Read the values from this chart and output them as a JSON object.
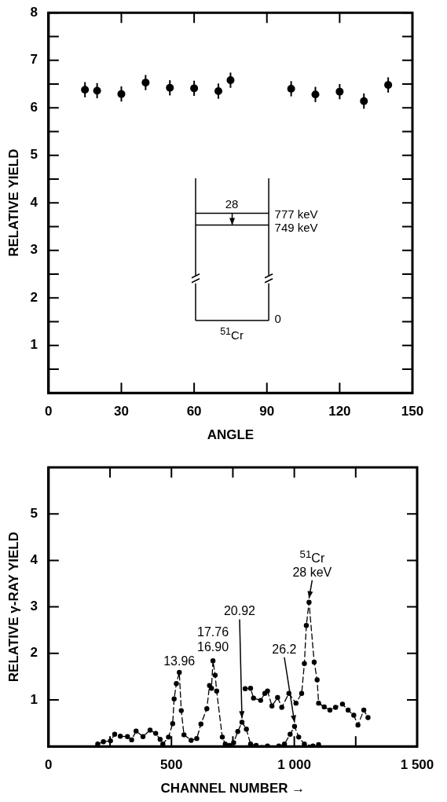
{
  "chart_data": [
    {
      "type": "scatter",
      "xlabel": "ANGLE",
      "ylabel": "RELATIVE YIELD",
      "x": [
        15,
        20,
        30,
        40,
        50,
        60,
        70,
        75,
        100,
        110,
        120,
        130,
        140
      ],
      "values": [
        6.38,
        6.36,
        6.29,
        6.53,
        6.42,
        6.41,
        6.35,
        6.58,
        6.4,
        6.28,
        6.34,
        6.14,
        6.48
      ],
      "errors": [
        0.16,
        0.16,
        0.16,
        0.16,
        0.16,
        0.16,
        0.16,
        0.16,
        0.16,
        0.16,
        0.16,
        0.16,
        0.16
      ],
      "color": "#000000",
      "marker": "circle",
      "xlim": [
        0,
        150
      ],
      "xticks": [
        0,
        30,
        60,
        90,
        120,
        150
      ],
      "ylim": [
        0,
        8
      ],
      "yticks": [
        {
          "value": 0,
          "label": null
        },
        {
          "value": 0.5,
          "label": null
        },
        1,
        {
          "value": 1.5,
          "label": null
        },
        2,
        {
          "value": 2.5,
          "label": null
        },
        3,
        {
          "value": 3.5,
          "label": null
        },
        4,
        {
          "value": 4.5,
          "label": null
        },
        5,
        {
          "value": 5.5,
          "label": null
        },
        6,
        {
          "value": 6.5,
          "label": null
        },
        7,
        {
          "value": 7.5,
          "label": null
        },
        8
      ],
      "annotations": [
        "28",
        "777 keV",
        "749 keV",
        "0",
        "$^{51}$Cr"
      ]
    },
    {
      "type": "line",
      "xlabel": "CHANNEL NUMBER →",
      "ylabel": "RELATIVE γ-RAY YIELD",
      "series": [
        {
          "color": "#000000",
          "x": [
            200,
            223,
            252,
            269,
            292,
            321,
            338,
            356,
            384,
            413,
            436,
            454,
            465,
            488,
            505,
            511,
            520,
            532,
            540,
            551,
            580,
            603,
            620,
            644,
            655,
            663,
            669,
            678,
            684,
            707,
            719,
            736,
            753,
            770,
            787,
            805,
            822,
            845,
            891,
            937,
            960,
            983,
            1001,
            1018,
            1041,
            1076,
            1099
          ],
          "values": [
            0.05,
            0.1,
            0.12,
            0.26,
            0.22,
            0.21,
            0.14,
            0.33,
            0.21,
            0.35,
            0.28,
            0.15,
            0.05,
            0.2,
            0.49,
            1.02,
            1.35,
            1.59,
            0.77,
            0.25,
            0.13,
            0.17,
            0.48,
            0.81,
            1.31,
            1.25,
            1.84,
            1.53,
            1.19,
            0.2,
            0.05,
            0.02,
            0.08,
            0.32,
            0.52,
            0.37,
            0.05,
            0.02,
            0.01,
            0.01,
            0.05,
            0.26,
            0.43,
            0.2,
            0.05,
            0.01,
            0.04
          ]
        },
        {
          "color": "#000000",
          "x": [
            800,
            822,
            834,
            863,
            880,
            891,
            909,
            932,
            949,
            978,
            1007,
            1030,
            1041,
            1049,
            1060,
            1081,
            1093,
            1099,
            1122,
            1145,
            1168,
            1196,
            1219,
            1242,
            1259,
            1283,
            1300
          ],
          "values": [
            1.24,
            1.25,
            1.04,
            0.99,
            1.14,
            1.19,
            0.87,
            1.05,
            0.84,
            1.14,
            0.93,
            1.14,
            1.78,
            2.6,
            3.1,
            1.81,
            1.43,
            0.93,
            0.85,
            0.78,
            0.84,
            0.91,
            0.78,
            0.67,
            0.46,
            0.78,
            0.62
          ]
        }
      ],
      "marker": "circle",
      "line_style": "dashed",
      "xlim": [
        0,
        1500
      ],
      "xticks": [
        0,
        {
          "value": 250,
          "label": null
        },
        500,
        {
          "value": 750,
          "label": null
        },
        {
          "value": 1000,
          "label": "1 000"
        },
        {
          "value": 1250,
          "label": null
        },
        {
          "value": 1500,
          "label": "1 500"
        }
      ],
      "ylim": [
        0,
        6
      ],
      "yticks": [
        {
          "value": 0,
          "label": null
        },
        1,
        2,
        3,
        4,
        5,
        {
          "value": 6,
          "label": null
        }
      ],
      "annotations": [
        {
          "text": "13.96",
          "x": 532,
          "y": 1.59
        },
        {
          "text": "17.76",
          "x": 669,
          "y": 1.84
        },
        {
          "text": "16.90",
          "x": 669,
          "y": 1.84
        },
        {
          "text": "20.92",
          "x": 787,
          "y": 0.52
        },
        {
          "text": "26.2",
          "x": 1001,
          "y": 0.43
        },
        {
          "text": "$^{51}$Cr",
          "x": 1060,
          "y": 3.1
        },
        {
          "text": "28 keV",
          "x": 1060,
          "y": 3.1
        }
      ]
    }
  ]
}
